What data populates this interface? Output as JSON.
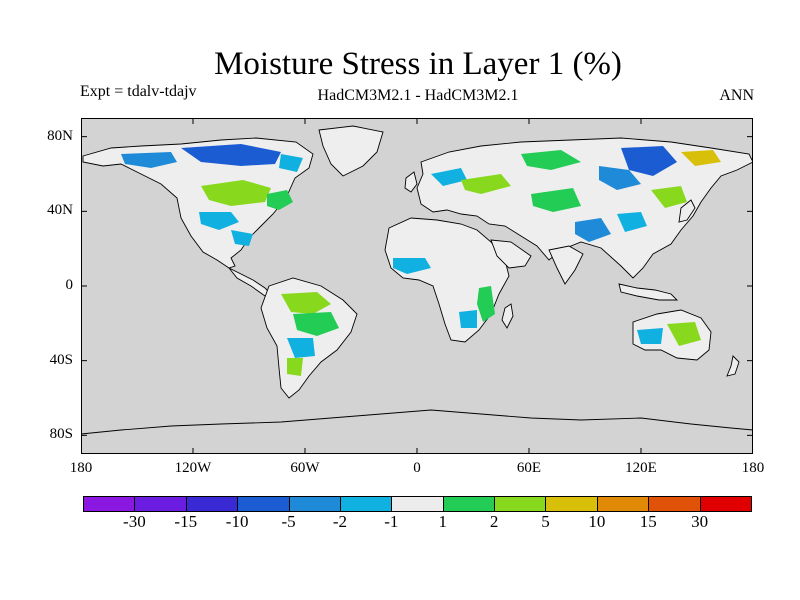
{
  "header": {
    "title": "Moisture Stress in Layer 1 (%)",
    "experiment": "Expt = tdalv-tdajv",
    "models": "HadCM3M2.1 - HadCM3M2.1",
    "season": "ANN"
  },
  "map": {
    "lat_labels": [
      "80N",
      "40N",
      "0",
      "40S",
      "80S"
    ],
    "lat_values": [
      80,
      40,
      0,
      -40,
      -80
    ],
    "lon_labels": [
      "180",
      "120W",
      "60W",
      "0",
      "60E",
      "120E",
      "180"
    ],
    "lon_values": [
      -180,
      -120,
      -60,
      0,
      60,
      120,
      180
    ],
    "lat_range": [
      -90,
      90
    ],
    "lon_range": [
      -180,
      180
    ],
    "ocean_color": "#d3d3d3",
    "land_color": "#eeeeee",
    "coast_color": "#000000"
  },
  "colorbar": {
    "labels": [
      "-30",
      "-15",
      "-10",
      "-5",
      "-2",
      "-1",
      "1",
      "2",
      "5",
      "10",
      "15",
      "30"
    ],
    "colors": [
      "#8a18e0",
      "#6a1ce0",
      "#3a2ad6",
      "#1c5cd2",
      "#1e8ad8",
      "#10b0e0",
      "#ececec",
      "#22cc55",
      "#88d81e",
      "#d8c00a",
      "#e08a08",
      "#e05208",
      "#e00000"
    ]
  }
}
